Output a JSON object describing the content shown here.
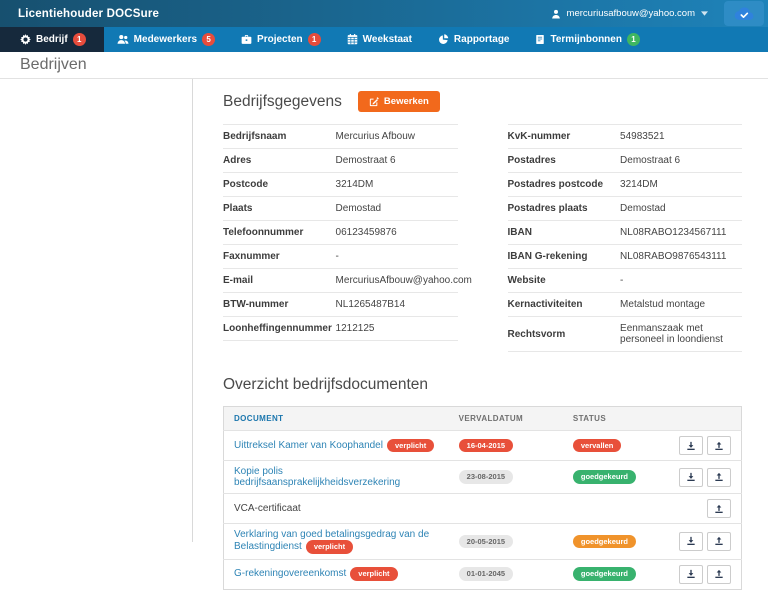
{
  "header": {
    "brand": "Licentiehouder DOCSure",
    "user": {
      "email": "mercuriusafbouw@yahoo.com",
      "icon": "user-icon",
      "caret_icon": "caret-down-icon"
    },
    "sync_button": {
      "icon": "cloud-check-icon"
    }
  },
  "nav": {
    "items": [
      {
        "id": "bedrijf",
        "label": "Bedrijf",
        "icon": "gear-icon",
        "badge": "1",
        "badge_color": "red",
        "active": true
      },
      {
        "id": "medewerkers",
        "label": "Medewerkers",
        "icon": "users-icon",
        "badge": "5",
        "badge_color": "red",
        "active": false
      },
      {
        "id": "projecten",
        "label": "Projecten",
        "icon": "briefcase-icon",
        "badge": "1",
        "badge_color": "red",
        "active": false
      },
      {
        "id": "weekstaat",
        "label": "Weekstaat",
        "icon": "calendar-icon",
        "badge": null,
        "active": false
      },
      {
        "id": "rapportage",
        "label": "Rapportage",
        "icon": "pie-chart-icon",
        "badge": null,
        "active": false
      },
      {
        "id": "termijnbonnen",
        "label": "Termijnbonnen",
        "icon": "receipt-icon",
        "badge": "1",
        "badge_color": "green",
        "active": false
      }
    ]
  },
  "page": {
    "title": "Bedrijven"
  },
  "company": {
    "title": "Bedrijfsgegevens",
    "edit_button": {
      "label": "Bewerken",
      "icon": "pencil-icon"
    },
    "fields_left": [
      {
        "label": "Bedrijfsnaam",
        "value": "Mercurius Afbouw"
      },
      {
        "label": "Adres",
        "value": "Demostraat 6"
      },
      {
        "label": "Postcode",
        "value": "3214DM"
      },
      {
        "label": "Plaats",
        "value": "Demostad"
      },
      {
        "label": "Telefoonnummer",
        "value": "06123459876"
      },
      {
        "label": "Faxnummer",
        "value": "-"
      },
      {
        "label": "E-mail",
        "value": "MercuriusAfbouw@yahoo.com"
      },
      {
        "label": "BTW-nummer",
        "value": "NL1265487B14"
      },
      {
        "label": "Loonheffingennummer",
        "value": "1212125"
      }
    ],
    "fields_right": [
      {
        "label": "KvK-nummer",
        "value": "54983521"
      },
      {
        "label": "Postadres",
        "value": "Demostraat 6"
      },
      {
        "label": "Postadres postcode",
        "value": "3214DM"
      },
      {
        "label": "Postadres plaats",
        "value": "Demostad"
      },
      {
        "label": "IBAN",
        "value": "NL08RABO1234567111"
      },
      {
        "label": "IBAN G-rekening",
        "value": "NL08RABO9876543111"
      },
      {
        "label": "Website",
        "value": "-"
      },
      {
        "label": "Kernactiviteiten",
        "value": "Metalstud montage"
      },
      {
        "label": "Rechtsvorm",
        "value": "Eenmanszaak met personeel in loondienst"
      }
    ]
  },
  "documents": {
    "title": "Overzicht bedrijfsdocumenten",
    "columns": [
      "DOCUMENT",
      "VERVALDATUM",
      "STATUS"
    ],
    "rows": [
      {
        "name": "Uittreksel Kamer van Koophandel",
        "link": true,
        "required_badge": "verplicht",
        "due_date": "16-04-2015",
        "due_style": "red",
        "status": "vervallen",
        "status_style": "red",
        "actions": [
          "download",
          "upload"
        ]
      },
      {
        "name": "Kopie polis bedrijfsaansprakelijkheidsverzekering",
        "link": true,
        "required_badge": null,
        "due_date": "23-08-2015",
        "due_style": "gray",
        "status": "goedgekeurd",
        "status_style": "green",
        "actions": [
          "download",
          "upload"
        ]
      },
      {
        "name": "VCA-certificaat",
        "link": false,
        "required_badge": null,
        "due_date": null,
        "due_style": null,
        "status": null,
        "status_style": null,
        "actions": [
          "upload"
        ]
      },
      {
        "name": "Verklaring van goed betalingsgedrag van de Belastingdienst",
        "link": true,
        "required_badge": "verplicht",
        "due_date": "20-05-2015",
        "due_style": "gray",
        "status": "goedgekeurd",
        "status_style": "orange",
        "actions": [
          "download",
          "upload"
        ]
      },
      {
        "name": "G-rekeningovereenkomst",
        "link": true,
        "required_badge": "verplicht",
        "due_date": "01-01-2045",
        "due_style": "gray",
        "status": "goedgekeurd",
        "status_style": "green",
        "actions": [
          "download",
          "upload"
        ]
      }
    ]
  },
  "colors": {
    "header_gradient_start": "#17506f",
    "header_gradient_end": "#1e83ba",
    "nav_background": "#1179b4",
    "nav_active_background": "#16293c",
    "badge_red": "#e74c3c",
    "badge_green": "#3fb661",
    "accent_orange": "#f2691c",
    "link_blue": "#2e84b5",
    "pill_red": "#e8503a",
    "pill_gray": "#e7e7e7",
    "pill_green": "#38b26e",
    "pill_orange": "#f0932b",
    "sync_button_background": "#2e8cc5",
    "cloud_blue": "#2f82dd"
  }
}
